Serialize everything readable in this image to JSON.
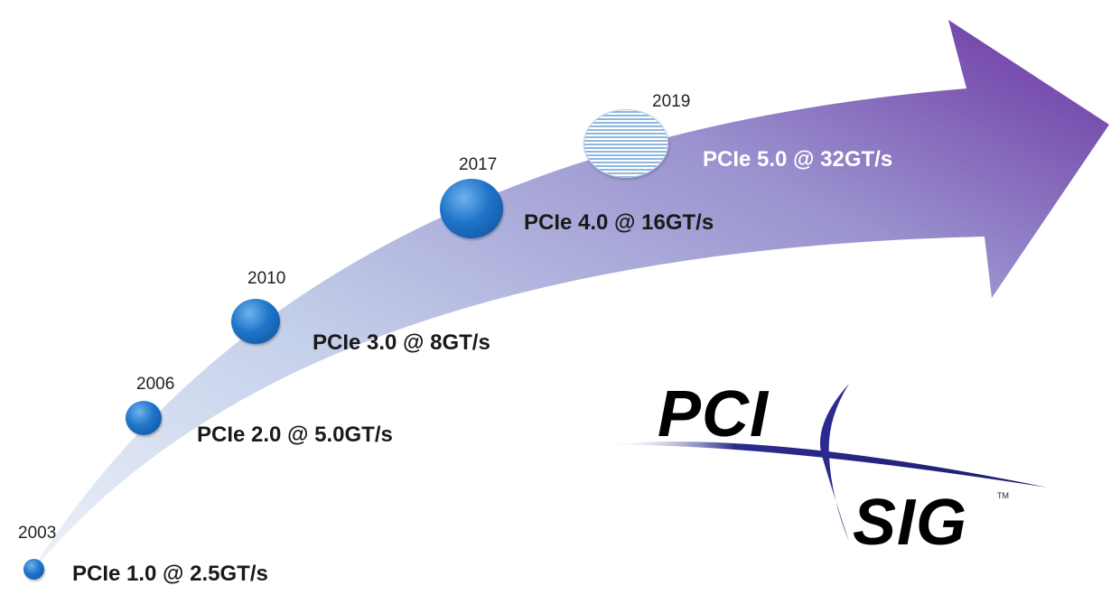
{
  "milestones": [
    {
      "year": "2003",
      "label": "PCIe 1.0 @ 2.5GT/s"
    },
    {
      "year": "2006",
      "label": "PCIe 2.0 @ 5.0GT/s"
    },
    {
      "year": "2010",
      "label": "PCIe 3.0 @ 8GT/s"
    },
    {
      "year": "2017",
      "label": "PCIe 4.0 @ 16GT/s"
    },
    {
      "year": "2019",
      "label": "PCIe 5.0 @ 32GT/s"
    }
  ],
  "logo": {
    "line1": "PCI",
    "line2": "SIG",
    "trademark": "TM"
  },
  "colors": {
    "arrow_start": "#dfe6f4",
    "arrow_mid": "#a9b8df",
    "arrow_end": "#6a32a0",
    "dot": "#1f74c9",
    "logo_swoosh": "#2b2b8f"
  }
}
